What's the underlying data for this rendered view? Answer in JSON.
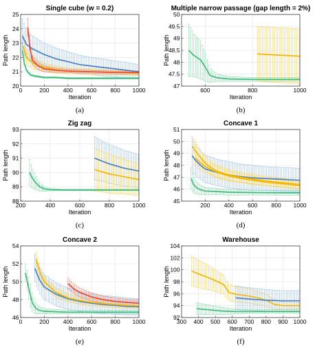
{
  "colors": {
    "blue": "#4a7fc1",
    "orange": "#e8482c",
    "yellow": "#f2b705",
    "green": "#3dbb7a",
    "blue_band": "#9fc3e6",
    "yellow_band": "#f4d35e",
    "green_band": "#8fdcaf",
    "red_band": "#ef8a7a"
  },
  "chart_data": [
    {
      "type": "line",
      "title": "Single cube (w = 0.2)",
      "xlabel": "Iteration",
      "ylabel": "Path length",
      "caption": "(a)",
      "xlim": [
        0,
        1000
      ],
      "ylim": [
        20,
        25
      ],
      "xticks": [
        0,
        200,
        400,
        600,
        800,
        1000
      ],
      "yticks": [
        20,
        21,
        22,
        23,
        24,
        25
      ],
      "grid": true,
      "series": [
        {
          "color_key": "green",
          "band_key": "green_band",
          "x": [
            15,
            30,
            50,
            80,
            120,
            200,
            300,
            400,
            600,
            800,
            1000
          ],
          "y": [
            22.5,
            21.6,
            21.1,
            20.8,
            20.7,
            20.6,
            20.6,
            20.55,
            20.55,
            20.55,
            20.55
          ],
          "err": [
            0.3,
            0.2,
            0.12,
            0.08,
            0.06,
            0.05,
            0.05,
            0.05,
            0.05,
            0.05,
            0.05
          ]
        },
        {
          "color_key": "blue",
          "band_key": "blue_band",
          "x": [
            15,
            50,
            100,
            200,
            300,
            400,
            500,
            600,
            700,
            800,
            900,
            1000
          ],
          "y": [
            23.5,
            22.9,
            22.6,
            22.2,
            21.9,
            21.7,
            21.5,
            21.4,
            21.3,
            21.2,
            21.1,
            21.0
          ],
          "err": [
            1.2,
            1.0,
            0.9,
            0.8,
            0.75,
            0.7,
            0.65,
            0.6,
            0.6,
            0.55,
            0.55,
            0.5
          ]
        },
        {
          "color_key": "yellow",
          "band_key": "yellow_band",
          "x": [
            20,
            50,
            100,
            200,
            300,
            400,
            600,
            800,
            1000
          ],
          "y": [
            22.8,
            22.0,
            21.6,
            21.3,
            21.15,
            21.05,
            21.0,
            20.95,
            20.9
          ],
          "err": [
            0.8,
            0.5,
            0.4,
            0.3,
            0.25,
            0.2,
            0.2,
            0.15,
            0.15
          ]
        },
        {
          "color_key": "orange",
          "band_key": "red_band",
          "x": [
            60,
            80,
            100,
            150,
            200,
            300,
            400,
            600,
            800,
            1000
          ],
          "y": [
            24.1,
            22.6,
            21.8,
            21.4,
            21.2,
            21.1,
            21.05,
            21.0,
            20.95,
            20.95
          ],
          "err": [
            0.6,
            0.5,
            0.35,
            0.25,
            0.2,
            0.15,
            0.12,
            0.1,
            0.1,
            0.1
          ]
        }
      ]
    },
    {
      "type": "line",
      "title": "Multiple narrow passage (gap length = 2%)",
      "xlabel": "Iteration",
      "ylabel": "Path length",
      "caption": "(b)",
      "xlim": [
        500,
        1000
      ],
      "ylim": [
        47,
        50
      ],
      "xticks": [
        600,
        800,
        1000
      ],
      "yticks": [
        47,
        47.5,
        48,
        48.5,
        49,
        49.5,
        50
      ],
      "grid": true,
      "series": [
        {
          "color_key": "green",
          "band_key": "green_band",
          "x": [
            530,
            550,
            580,
            600,
            620,
            650,
            700,
            800,
            900,
            1000
          ],
          "y": [
            48.5,
            48.3,
            48.1,
            47.8,
            47.45,
            47.35,
            47.3,
            47.28,
            47.28,
            47.28
          ],
          "err": [
            1.1,
            0.9,
            0.8,
            0.6,
            0.3,
            0.15,
            0.1,
            0.08,
            0.08,
            0.08
          ]
        },
        {
          "color_key": "yellow",
          "band_key": "yellow_band",
          "x": [
            820,
            850,
            900,
            950,
            1000
          ],
          "y": [
            48.35,
            48.33,
            48.3,
            48.28,
            48.25
          ],
          "err": [
            1.15,
            1.15,
            1.15,
            1.15,
            1.15
          ]
        }
      ]
    },
    {
      "type": "line",
      "title": "Zig zag",
      "xlabel": "Iteration",
      "ylabel": "Path length",
      "caption": "(c)",
      "xlim": [
        200,
        1000
      ],
      "ylim": [
        88,
        93
      ],
      "xticks": [
        200,
        400,
        600,
        800,
        1000
      ],
      "yticks": [
        88,
        89,
        90,
        91,
        92,
        93
      ],
      "grid": true,
      "series": [
        {
          "color_key": "green",
          "band_key": "green_band",
          "x": [
            260,
            280,
            300,
            330,
            360,
            400,
            500,
            600,
            700,
            800,
            900,
            1000
          ],
          "y": [
            90.0,
            89.6,
            89.3,
            89.0,
            88.85,
            88.8,
            88.78,
            88.78,
            88.78,
            88.78,
            88.78,
            88.78
          ],
          "err": [
            0.9,
            0.7,
            0.5,
            0.3,
            0.15,
            0.08,
            0.05,
            0.05,
            0.05,
            0.05,
            0.05,
            0.05
          ]
        },
        {
          "color_key": "blue",
          "band_key": "blue_band",
          "x": [
            700,
            750,
            800,
            850,
            900,
            950,
            1000
          ],
          "y": [
            91.0,
            90.8,
            90.6,
            90.45,
            90.3,
            90.2,
            90.1
          ],
          "err": [
            1.5,
            1.4,
            1.35,
            1.3,
            1.25,
            1.2,
            1.15
          ]
        },
        {
          "color_key": "yellow",
          "band_key": "yellow_band",
          "x": [
            700,
            750,
            800,
            850,
            900,
            950,
            1000
          ],
          "y": [
            90.2,
            90.05,
            89.9,
            89.8,
            89.7,
            89.6,
            89.5
          ],
          "err": [
            1.5,
            1.4,
            1.35,
            1.3,
            1.2,
            1.15,
            1.1
          ]
        }
      ]
    },
    {
      "type": "line",
      "title": "Concave 1",
      "xlabel": "Iteration",
      "ylabel": "Path length",
      "caption": "(d)",
      "xlim": [
        0,
        1000
      ],
      "ylim": [
        45,
        51
      ],
      "xticks": [
        200,
        400,
        600,
        800,
        1000
      ],
      "yticks": [
        45,
        46,
        47,
        48,
        49,
        50,
        51
      ],
      "grid": true,
      "series": [
        {
          "color_key": "green",
          "band_key": "green_band",
          "x": [
            80,
            100,
            130,
            160,
            200,
            300,
            400,
            600,
            800,
            1000
          ],
          "y": [
            46.9,
            46.4,
            46.1,
            45.95,
            45.85,
            45.8,
            45.75,
            45.72,
            45.7,
            45.7
          ],
          "err": [
            0.9,
            0.7,
            0.5,
            0.4,
            0.3,
            0.25,
            0.25,
            0.2,
            0.2,
            0.2
          ]
        },
        {
          "color_key": "blue",
          "band_key": "blue_band",
          "x": [
            90,
            120,
            160,
            200,
            300,
            400,
            500,
            600,
            700,
            800,
            900,
            1000
          ],
          "y": [
            48.8,
            48.4,
            48.0,
            47.7,
            47.4,
            47.2,
            47.05,
            46.95,
            46.9,
            46.85,
            46.8,
            46.75
          ],
          "err": [
            1.4,
            1.3,
            1.2,
            1.15,
            1.1,
            1.1,
            1.05,
            1.05,
            1.0,
            1.0,
            1.0,
            1.0
          ]
        },
        {
          "color_key": "yellow",
          "band_key": "yellow_band",
          "x": [
            90,
            110,
            140,
            180,
            220,
            300,
            400,
            500,
            600,
            700,
            800,
            900,
            1000
          ],
          "y": [
            49.6,
            49.3,
            48.9,
            48.4,
            48.0,
            47.5,
            47.2,
            47.0,
            46.85,
            46.7,
            46.6,
            46.5,
            46.4
          ],
          "err": [
            0.8,
            0.8,
            0.7,
            0.6,
            0.55,
            0.5,
            0.45,
            0.4,
            0.4,
            0.4,
            0.35,
            0.35,
            0.35
          ]
        },
        {
          "color_key": "yellow",
          "band_key": "yellow_band",
          "x": [
            120,
            160,
            200,
            300,
            400,
            500,
            600,
            700,
            800,
            900,
            1000
          ],
          "y": [
            48.6,
            48.2,
            47.9,
            47.4,
            47.1,
            46.9,
            46.75,
            46.6,
            46.5,
            46.4,
            46.3
          ],
          "err": [
            0.6,
            0.55,
            0.5,
            0.45,
            0.4,
            0.35,
            0.35,
            0.3,
            0.3,
            0.3,
            0.3
          ]
        }
      ]
    },
    {
      "type": "line",
      "title": "Concave 2",
      "xlabel": "Iteration",
      "ylabel": "Path length",
      "caption": "(e)",
      "xlim": [
        0,
        1000
      ],
      "ylim": [
        46,
        54
      ],
      "xticks": [
        0,
        200,
        400,
        600,
        800,
        1000
      ],
      "yticks": [
        46,
        48,
        50,
        52,
        54
      ],
      "grid": true,
      "series": [
        {
          "color_key": "green",
          "band_key": "green_band",
          "x": [
            40,
            60,
            80,
            100,
            130,
            160,
            200,
            300,
            400,
            600,
            800,
            1000
          ],
          "y": [
            51.0,
            49.8,
            48.6,
            47.6,
            47.0,
            46.8,
            46.7,
            46.65,
            46.6,
            46.6,
            46.6,
            46.6
          ],
          "err": [
            1.0,
            1.2,
            1.3,
            1.0,
            0.6,
            0.4,
            0.3,
            0.25,
            0.2,
            0.2,
            0.2,
            0.2
          ]
        },
        {
          "color_key": "blue",
          "band_key": "blue_band",
          "x": [
            120,
            160,
            200,
            300,
            400,
            500,
            600,
            700,
            800,
            900,
            1000
          ],
          "y": [
            51.5,
            50.2,
            49.4,
            48.6,
            48.1,
            47.8,
            47.6,
            47.45,
            47.35,
            47.25,
            47.2
          ],
          "err": [
            1.5,
            1.5,
            1.4,
            1.3,
            1.2,
            1.1,
            1.05,
            1.0,
            1.0,
            0.95,
            0.9
          ]
        },
        {
          "color_key": "yellow",
          "band_key": "yellow_band",
          "x": [
            130,
            170,
            200,
            300,
            400,
            500,
            600,
            700,
            800,
            900,
            1000
          ],
          "y": [
            52.5,
            50.8,
            50.0,
            48.8,
            48.2,
            47.9,
            47.7,
            47.55,
            47.45,
            47.35,
            47.3
          ],
          "err": [
            0.8,
            0.7,
            0.6,
            0.5,
            0.45,
            0.4,
            0.4,
            0.35,
            0.35,
            0.3,
            0.3
          ]
        },
        {
          "color_key": "orange",
          "band_key": "red_band",
          "x": [
            400,
            450,
            500,
            600,
            700,
            800,
            900,
            1000
          ],
          "y": [
            49.8,
            49.2,
            48.8,
            48.3,
            48.0,
            47.8,
            47.7,
            47.6
          ],
          "err": [
            0.6,
            0.55,
            0.5,
            0.45,
            0.4,
            0.4,
            0.35,
            0.35
          ]
        }
      ]
    },
    {
      "type": "line",
      "title": "Warehouse",
      "xlabel": "Iteration",
      "ylabel": "Path length",
      "caption": "(f)",
      "xlim": [
        300,
        1000
      ],
      "ylim": [
        92,
        104
      ],
      "xticks": [
        300,
        400,
        500,
        600,
        700,
        800,
        900,
        1000
      ],
      "yticks": [
        92,
        94,
        96,
        98,
        100,
        102,
        104
      ],
      "grid": true,
      "series": [
        {
          "color_key": "yellow",
          "band_key": "yellow_band",
          "x": [
            360,
            400,
            450,
            500,
            550,
            580,
            620,
            700,
            750,
            800,
            850,
            900,
            1000
          ],
          "y": [
            99.8,
            99.3,
            98.8,
            98.2,
            97.5,
            96.2,
            95.9,
            95.6,
            95.3,
            94.9,
            94.2,
            94.0,
            94.0
          ],
          "err": [
            2.5,
            2.3,
            2.1,
            1.8,
            1.6,
            1.4,
            1.3,
            1.2,
            1.1,
            1.0,
            0.8,
            0.6,
            0.5
          ]
        },
        {
          "color_key": "blue",
          "band_key": "blue_band",
          "x": [
            620,
            700,
            800,
            900,
            1000
          ],
          "y": [
            95.3,
            95.1,
            94.9,
            94.8,
            94.8
          ],
          "err": [
            2.0,
            1.9,
            1.8,
            1.7,
            1.7
          ]
        },
        {
          "color_key": "green",
          "band_key": "green_band",
          "x": [
            390,
            420,
            460,
            500,
            540,
            580,
            620,
            700,
            800,
            900,
            1000
          ],
          "y": [
            93.5,
            93.4,
            93.3,
            93.2,
            93.1,
            93.05,
            93.0,
            93.0,
            93.0,
            93.0,
            93.0
          ],
          "err": [
            1.0,
            0.9,
            0.8,
            0.7,
            0.6,
            0.5,
            0.4,
            0.3,
            0.3,
            0.3,
            0.3
          ]
        }
      ]
    }
  ]
}
